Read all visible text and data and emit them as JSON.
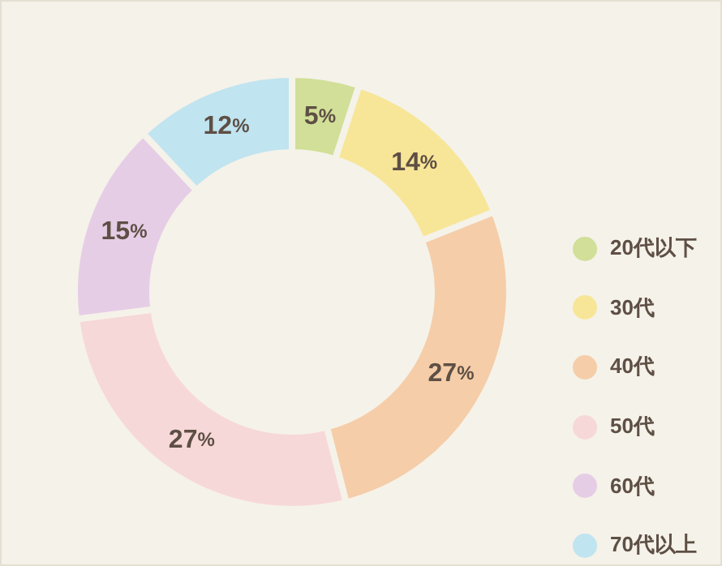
{
  "chart_data": {
    "type": "donut",
    "categories": [
      "20代以下",
      "30代",
      "40代",
      "50代",
      "60代",
      "70代以上"
    ],
    "values": [
      5,
      14,
      27,
      27,
      15,
      12
    ],
    "value_labels": [
      "5%",
      "14%",
      "27%",
      "27%",
      "15%",
      "12%"
    ],
    "colors": [
      "#d1df98",
      "#f7e697",
      "#f5cda8",
      "#f7d8d8",
      "#e6cde6",
      "#c0e4f0"
    ],
    "legend": "right"
  }
}
